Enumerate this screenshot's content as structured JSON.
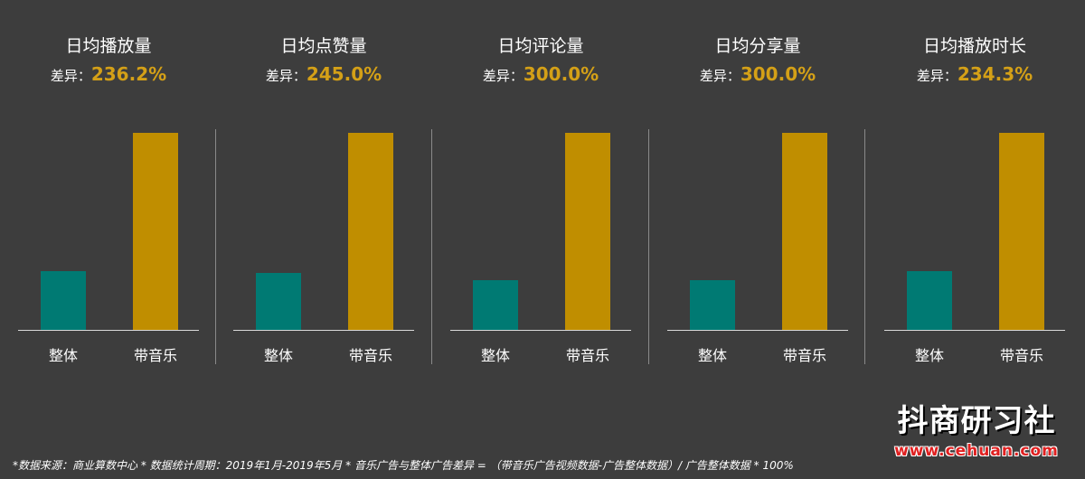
{
  "chart_data": {
    "type": "bar",
    "categories": [
      "整体",
      "带音乐"
    ],
    "colors": [
      "#007a73",
      "#c08e00"
    ],
    "diff_label": "差异：",
    "ylim": [
      0,
      100
    ],
    "panels": [
      {
        "title": "日均播放量",
        "diff": "236.2%",
        "values": [
          29.7,
          100
        ]
      },
      {
        "title": "日均点赞量",
        "diff": "245.0%",
        "values": [
          29.0,
          100
        ]
      },
      {
        "title": "日均评论量",
        "diff": "300.0%",
        "values": [
          25.0,
          100
        ]
      },
      {
        "title": "日均分享量",
        "diff": "300.0%",
        "values": [
          25.0,
          100
        ]
      },
      {
        "title": "日均播放时长",
        "diff": "234.3%",
        "values": [
          29.9,
          100
        ]
      }
    ]
  },
  "footnote": "*数据来源：商业算数中心 * 数据统计周期：2019年1月-2019年5月 * 音乐广告与整体广告差异 = （带音乐广告视频数据-广告整体数据）/ 广告整体数据 * 100%",
  "logo": {
    "name": "抖商研习社",
    "url": "www.cehuan.com"
  }
}
